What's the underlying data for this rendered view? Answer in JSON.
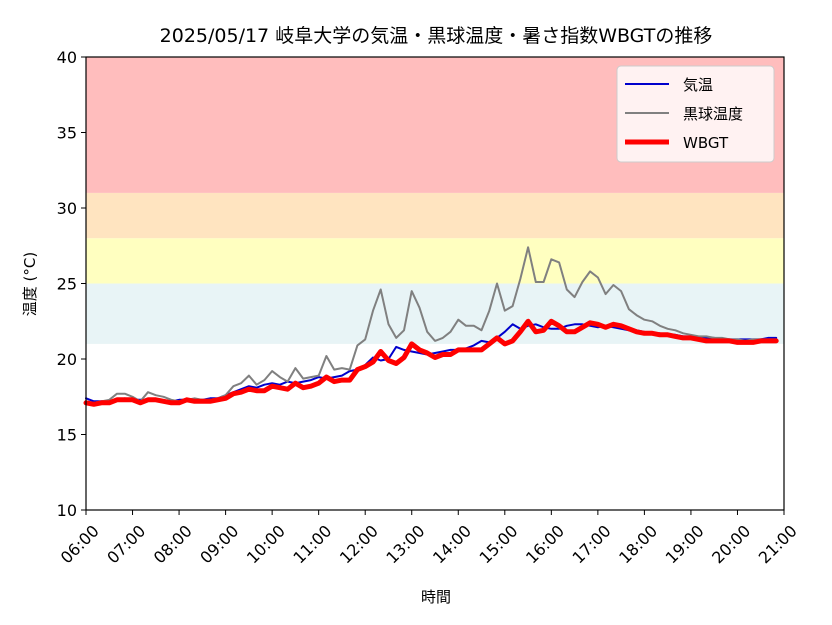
{
  "chart_data": {
    "type": "line",
    "title": "2025/05/17 岐阜大学の気温・黒球温度・暑さ指数WBGTの推移",
    "xlabel": "時間",
    "ylabel": "温度 (°C)",
    "xlim": [
      "06:00",
      "21:00"
    ],
    "ylim": [
      10,
      40
    ],
    "grid": false,
    "legend_position": "top-right",
    "x_tick_labels": [
      "06:00",
      "07:00",
      "08:00",
      "09:00",
      "10:00",
      "11:00",
      "12:00",
      "13:00",
      "14:00",
      "15:00",
      "16:00",
      "17:00",
      "18:00",
      "19:00",
      "20:00",
      "21:00"
    ],
    "y_ticks": [
      10,
      15,
      20,
      25,
      30,
      35,
      40
    ],
    "background_bands": [
      {
        "from": 21,
        "to": 25,
        "color": "#e8f4f6"
      },
      {
        "from": 25,
        "to": 28,
        "color": "#ffffc0"
      },
      {
        "from": 28,
        "to": 31,
        "color": "#ffe4c0"
      },
      {
        "from": 31,
        "to": 40,
        "color": "#ffbdbd"
      }
    ],
    "x": [
      "06:00",
      "06:10",
      "06:20",
      "06:30",
      "06:40",
      "06:50",
      "07:00",
      "07:10",
      "07:20",
      "07:30",
      "07:40",
      "07:50",
      "08:00",
      "08:10",
      "08:20",
      "08:30",
      "08:40",
      "08:50",
      "09:00",
      "09:10",
      "09:20",
      "09:30",
      "09:40",
      "09:50",
      "10:00",
      "10:10",
      "10:20",
      "10:30",
      "10:40",
      "10:50",
      "11:00",
      "11:10",
      "11:20",
      "11:30",
      "11:40",
      "11:50",
      "12:00",
      "12:10",
      "12:20",
      "12:30",
      "12:40",
      "12:50",
      "13:00",
      "13:10",
      "13:20",
      "13:30",
      "13:40",
      "13:50",
      "14:00",
      "14:10",
      "14:20",
      "14:30",
      "14:40",
      "14:50",
      "15:00",
      "15:10",
      "15:20",
      "15:30",
      "15:40",
      "15:50",
      "16:00",
      "16:10",
      "16:20",
      "16:30",
      "16:40",
      "16:50",
      "17:00",
      "17:10",
      "17:20",
      "17:30",
      "17:40",
      "17:50",
      "18:00",
      "18:10",
      "18:20",
      "18:30",
      "18:40",
      "18:50",
      "19:00",
      "19:10",
      "19:20",
      "19:30",
      "19:40",
      "19:50",
      "20:00",
      "20:10",
      "20:20",
      "20:30",
      "20:40",
      "20:50"
    ],
    "series": [
      {
        "name": "気温",
        "color": "#0000cc",
        "width": 2,
        "values": [
          17.4,
          17.2,
          17.2,
          17.2,
          17.3,
          17.4,
          17.3,
          17.3,
          17.3,
          17.3,
          17.2,
          17.2,
          17.3,
          17.3,
          17.3,
          17.3,
          17.4,
          17.4,
          17.6,
          17.8,
          18.0,
          18.2,
          18.1,
          18.3,
          18.4,
          18.3,
          18.5,
          18.4,
          18.5,
          18.6,
          18.8,
          18.7,
          18.8,
          18.9,
          19.2,
          19.3,
          19.6,
          20.1,
          19.9,
          20.0,
          20.8,
          20.6,
          20.5,
          20.4,
          20.3,
          20.4,
          20.5,
          20.6,
          20.6,
          20.7,
          20.9,
          21.2,
          21.1,
          21.4,
          21.8,
          22.3,
          22.0,
          22.2,
          22.3,
          22.1,
          22.0,
          22.0,
          22.2,
          22.3,
          22.3,
          22.2,
          22.1,
          22.2,
          22.1,
          22.0,
          21.9,
          21.9,
          21.8,
          21.7,
          21.7,
          21.6,
          21.6,
          21.5,
          21.5,
          21.4,
          21.4,
          21.4,
          21.3,
          21.3,
          21.3,
          21.3,
          21.3,
          21.3,
          21.4,
          21.4
        ]
      },
      {
        "name": "黒球温度",
        "color": "#808080",
        "width": 2,
        "values": [
          17.2,
          17.1,
          17.2,
          17.3,
          17.7,
          17.7,
          17.5,
          17.2,
          17.8,
          17.6,
          17.5,
          17.3,
          17.2,
          17.3,
          17.4,
          17.3,
          17.3,
          17.4,
          17.6,
          18.2,
          18.4,
          18.9,
          18.3,
          18.6,
          19.2,
          18.8,
          18.5,
          19.4,
          18.7,
          18.8,
          18.9,
          20.2,
          19.3,
          19.4,
          19.3,
          20.9,
          21.3,
          23.2,
          24.6,
          22.3,
          21.4,
          21.9,
          24.5,
          23.4,
          21.8,
          21.2,
          21.4,
          21.8,
          22.6,
          22.2,
          22.2,
          21.9,
          23.2,
          25.0,
          23.2,
          23.5,
          25.3,
          27.4,
          25.1,
          25.1,
          26.6,
          26.4,
          24.6,
          24.1,
          25.1,
          25.8,
          25.4,
          24.3,
          24.9,
          24.5,
          23.3,
          22.9,
          22.6,
          22.5,
          22.2,
          22.0,
          21.9,
          21.7,
          21.6,
          21.5,
          21.5,
          21.4,
          21.4,
          21.3,
          21.3,
          21.2,
          21.3,
          21.3,
          21.3,
          21.3
        ]
      },
      {
        "name": "WBGT",
        "color": "#ff0000",
        "width": 5,
        "values": [
          17.1,
          17.0,
          17.1,
          17.1,
          17.3,
          17.3,
          17.3,
          17.1,
          17.3,
          17.3,
          17.2,
          17.1,
          17.1,
          17.3,
          17.2,
          17.2,
          17.2,
          17.3,
          17.4,
          17.7,
          17.8,
          18.0,
          17.9,
          17.9,
          18.2,
          18.1,
          18.0,
          18.4,
          18.1,
          18.2,
          18.4,
          18.8,
          18.5,
          18.6,
          18.6,
          19.3,
          19.5,
          19.8,
          20.5,
          19.9,
          19.7,
          20.1,
          21.0,
          20.6,
          20.4,
          20.1,
          20.3,
          20.3,
          20.6,
          20.6,
          20.6,
          20.6,
          21.0,
          21.4,
          21.0,
          21.2,
          21.8,
          22.5,
          21.8,
          21.9,
          22.5,
          22.2,
          21.8,
          21.8,
          22.1,
          22.4,
          22.3,
          22.1,
          22.3,
          22.2,
          22.0,
          21.8,
          21.7,
          21.7,
          21.6,
          21.6,
          21.5,
          21.4,
          21.4,
          21.3,
          21.2,
          21.2,
          21.2,
          21.2,
          21.1,
          21.1,
          21.1,
          21.2,
          21.2,
          21.2
        ]
      }
    ]
  }
}
